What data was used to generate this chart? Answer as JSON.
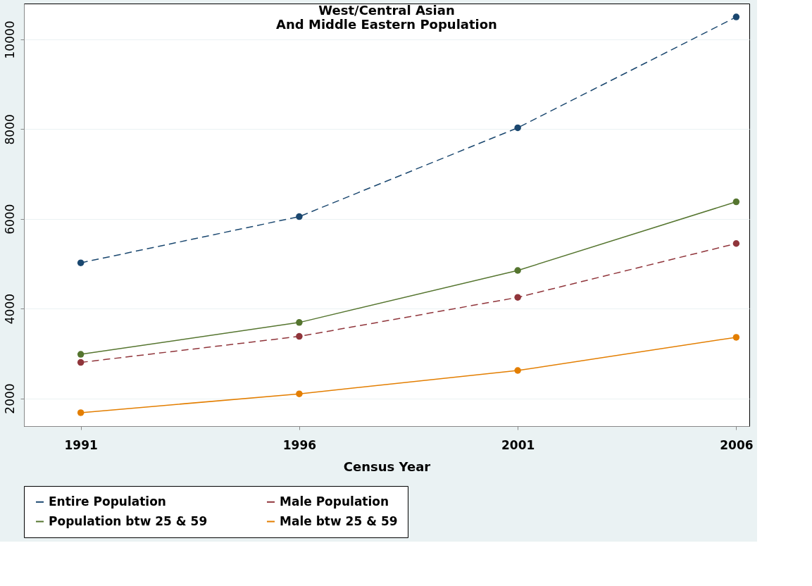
{
  "chart_data": {
    "type": "line",
    "title": "West/Central Asian\nAnd Middle Eastern Population",
    "xlabel": "Census Year",
    "x": [
      1991,
      1996,
      2001,
      2006
    ],
    "series": [
      {
        "name": "Entire Population",
        "color": "#1a476f",
        "line_style": "dashed",
        "values": [
          5020,
          6050,
          8030,
          10500
        ]
      },
      {
        "name": "Male Population",
        "color": "#90353b",
        "line_style": "dashed",
        "values": [
          2800,
          3380,
          4250,
          5450
        ]
      },
      {
        "name": "Population btw 25 & 59",
        "color": "#55752f",
        "line_style": "solid",
        "values": [
          2980,
          3690,
          4850,
          6380
        ]
      },
      {
        "name": "Male btw 25 & 59",
        "color": "#e37e00",
        "line_style": "solid",
        "values": [
          1680,
          2100,
          2620,
          3360
        ]
      }
    ],
    "xlim": [
      1989.7,
      2006.3
    ],
    "xticks": [
      1991,
      1996,
      2001,
      2006
    ],
    "ylim": [
      1380,
      10800
    ],
    "yticks": [
      2000,
      4000,
      6000,
      8000,
      10000
    ],
    "grid": "y",
    "legend": "bottom",
    "marker": "circle"
  }
}
